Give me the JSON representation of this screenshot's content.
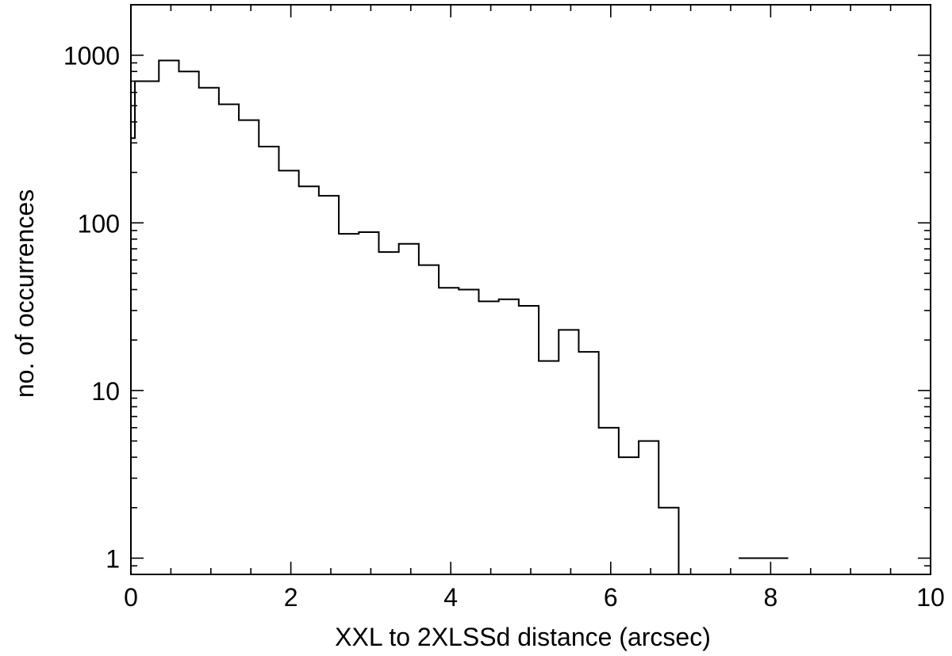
{
  "chart_data": {
    "type": "histogram",
    "xlabel": "XXL to 2XLSSd distance (arcsec)",
    "ylabel": "no. of occurrences",
    "xlim": [
      0,
      10
    ],
    "ylim": [
      0.8,
      2000
    ],
    "yscale": "log",
    "grid": false,
    "x_ticks": [
      0,
      2,
      4,
      6,
      8,
      10
    ],
    "x_tick_labels": [
      "0",
      "2",
      "4",
      "6",
      "8",
      "10"
    ],
    "y_ticks": [
      1,
      10,
      100,
      1000
    ],
    "y_tick_labels": [
      "1",
      "10",
      "100",
      "1000"
    ],
    "bin_width": 0.25,
    "bins": [
      {
        "x0": 0.0,
        "x1": 0.05,
        "count": 320
      },
      {
        "x0": 0.05,
        "x1": 0.35,
        "count": 700
      },
      {
        "x0": 0.35,
        "x1": 0.6,
        "count": 930
      },
      {
        "x0": 0.6,
        "x1": 0.85,
        "count": 800
      },
      {
        "x0": 0.85,
        "x1": 1.1,
        "count": 640
      },
      {
        "x0": 1.1,
        "x1": 1.35,
        "count": 510
      },
      {
        "x0": 1.35,
        "x1": 1.6,
        "count": 410
      },
      {
        "x0": 1.6,
        "x1": 1.85,
        "count": 285
      },
      {
        "x0": 1.85,
        "x1": 2.1,
        "count": 205
      },
      {
        "x0": 2.1,
        "x1": 2.35,
        "count": 165
      },
      {
        "x0": 2.35,
        "x1": 2.6,
        "count": 145
      },
      {
        "x0": 2.6,
        "x1": 2.85,
        "count": 86
      },
      {
        "x0": 2.85,
        "x1": 3.1,
        "count": 88
      },
      {
        "x0": 3.1,
        "x1": 3.35,
        "count": 67
      },
      {
        "x0": 3.35,
        "x1": 3.6,
        "count": 75
      },
      {
        "x0": 3.6,
        "x1": 3.85,
        "count": 56
      },
      {
        "x0": 3.85,
        "x1": 4.1,
        "count": 41
      },
      {
        "x0": 4.1,
        "x1": 4.35,
        "count": 40
      },
      {
        "x0": 4.35,
        "x1": 4.6,
        "count": 34
      },
      {
        "x0": 4.6,
        "x1": 4.85,
        "count": 35
      },
      {
        "x0": 4.85,
        "x1": 5.1,
        "count": 32
      },
      {
        "x0": 5.1,
        "x1": 5.35,
        "count": 15
      },
      {
        "x0": 5.35,
        "x1": 5.6,
        "count": 23
      },
      {
        "x0": 5.6,
        "x1": 5.85,
        "count": 17
      },
      {
        "x0": 5.85,
        "x1": 6.1,
        "count": 6
      },
      {
        "x0": 6.1,
        "x1": 6.35,
        "count": 4
      },
      {
        "x0": 6.35,
        "x1": 6.6,
        "count": 5
      },
      {
        "x0": 6.6,
        "x1": 6.85,
        "count": 2
      },
      {
        "x0": 6.85,
        "x1": 7.1,
        "count": 0
      },
      {
        "x0": 7.1,
        "x1": 7.35,
        "count": 0
      },
      {
        "x0": 7.35,
        "x1": 7.6,
        "count": 0
      },
      {
        "x0": 7.6,
        "x1": 7.85,
        "count": 1
      },
      {
        "x0": 7.85,
        "x1": 8.22,
        "count": 1
      }
    ]
  }
}
